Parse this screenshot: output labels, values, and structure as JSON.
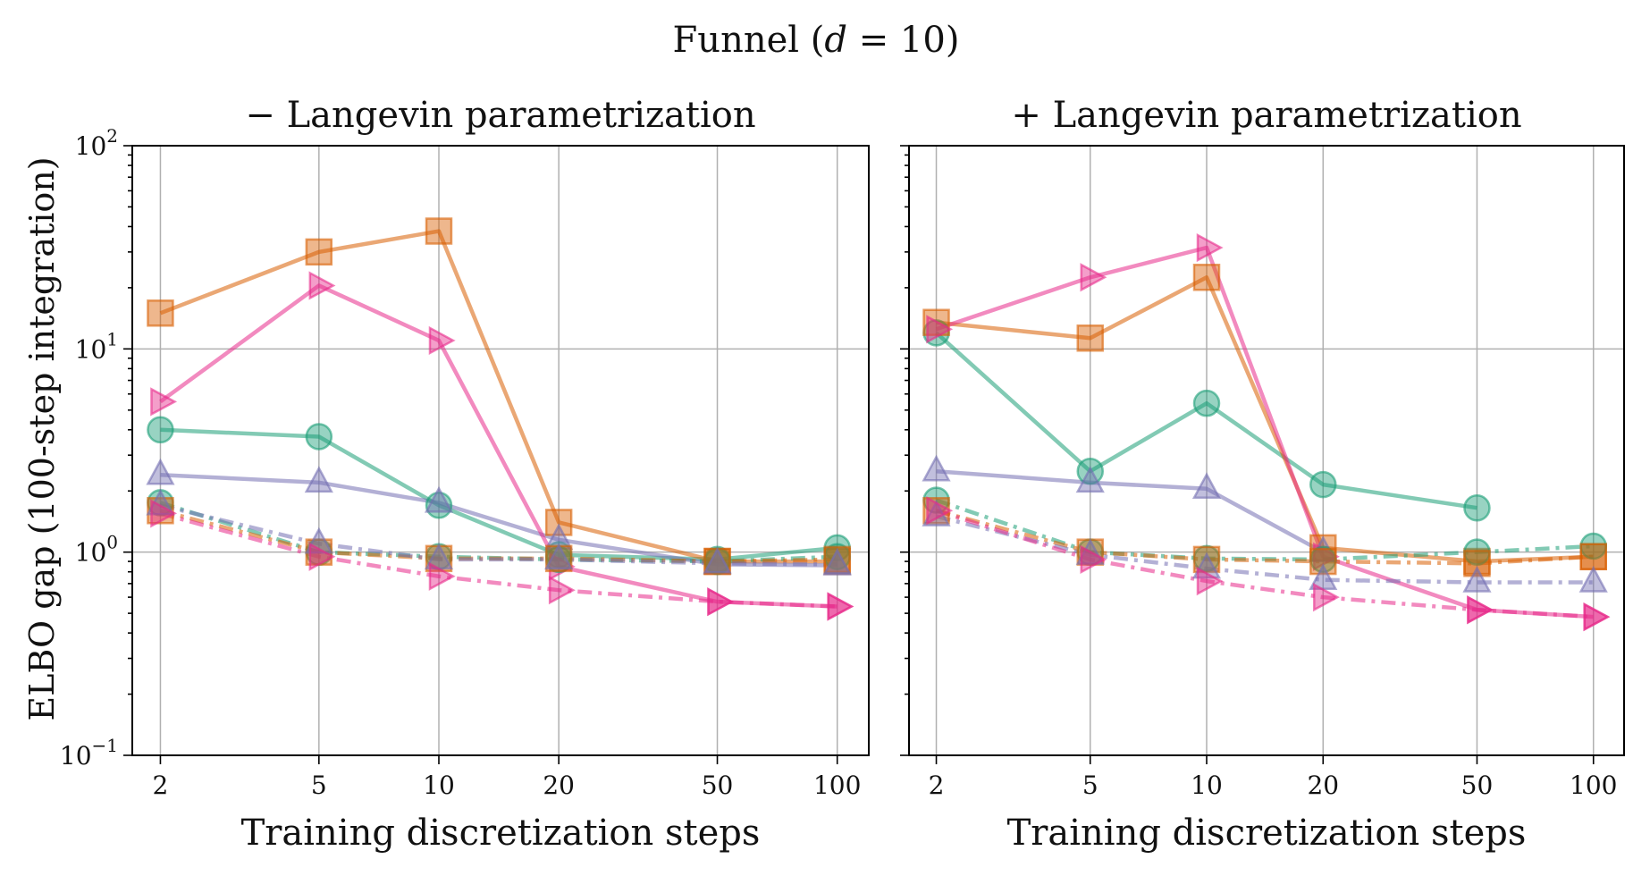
{
  "suptitle": "Funnel (d = 10)",
  "ylabel": "ELBO gap (100-step integration)",
  "colors": {
    "green": "#1b9e77",
    "orange": "#d95f02",
    "purple": "#7570b3",
    "pink": "#e7298a"
  },
  "chart_data": [
    {
      "type": "line",
      "title": "− Langevin parametrization",
      "xlabel": "Training discretization steps",
      "xscale": "log",
      "yscale": "log",
      "xlim": [
        1.7,
        120
      ],
      "ylim": [
        0.1,
        100
      ],
      "xticks": [
        2,
        5,
        10,
        20,
        50,
        100
      ],
      "xtick_labels": [
        "2",
        "5",
        "10",
        "20",
        "50",
        "100"
      ],
      "yticks": [
        0.1,
        1,
        10,
        100
      ],
      "ytick_labels": [
        {
          "base": "10",
          "exp": "−1"
        },
        {
          "base": "10",
          "exp": "0"
        },
        {
          "base": "10",
          "exp": "1"
        },
        {
          "base": "10",
          "exp": "2"
        }
      ],
      "grid": true,
      "series": [
        {
          "name": "green-solid",
          "color": "#1b9e77",
          "marker": "circle",
          "style": "solid",
          "x": [
            2,
            5,
            10,
            20,
            50,
            100
          ],
          "y": [
            4.0,
            3.7,
            1.7,
            0.97,
            0.92,
            1.05
          ]
        },
        {
          "name": "orange-solid",
          "color": "#d95f02",
          "marker": "square",
          "style": "solid",
          "x": [
            2,
            5,
            10,
            20,
            50,
            100
          ],
          "y": [
            15,
            30,
            38,
            1.4,
            0.9,
            0.9
          ]
        },
        {
          "name": "purple-solid",
          "color": "#7570b3",
          "marker": "triangle-up",
          "style": "solid",
          "x": [
            2,
            5,
            10,
            20,
            50,
            100
          ],
          "y": [
            2.4,
            2.2,
            1.75,
            1.15,
            0.87,
            0.86
          ]
        },
        {
          "name": "pink-solid",
          "color": "#e7298a",
          "marker": "triangle-right",
          "style": "solid",
          "x": [
            2,
            5,
            10,
            20,
            50,
            100
          ],
          "y": [
            5.5,
            20.5,
            11,
            0.85,
            0.57,
            0.54
          ]
        },
        {
          "name": "green-dashdot",
          "color": "#1b9e77",
          "marker": "circle",
          "style": "dashdot",
          "x": [
            2,
            5,
            10,
            20,
            50,
            100
          ],
          "y": [
            1.75,
            1.0,
            0.95,
            0.92,
            0.9,
            0.95
          ]
        },
        {
          "name": "orange-dashdot",
          "color": "#d95f02",
          "marker": "square",
          "style": "dashdot",
          "x": [
            2,
            5,
            10,
            20,
            50,
            100
          ],
          "y": [
            1.6,
            1.0,
            0.93,
            0.93,
            0.9,
            0.92
          ]
        },
        {
          "name": "purple-dashdot",
          "color": "#7570b3",
          "marker": "triangle-up",
          "style": "dashdot",
          "x": [
            2,
            5,
            10,
            20,
            50,
            100
          ],
          "y": [
            1.7,
            1.1,
            0.92,
            0.92,
            0.88,
            0.87
          ]
        },
        {
          "name": "pink-dashdot",
          "color": "#e7298a",
          "marker": "triangle-right",
          "style": "dashdot",
          "x": [
            2,
            5,
            10,
            20,
            50,
            100
          ],
          "y": [
            1.55,
            0.95,
            0.76,
            0.65,
            0.57,
            0.54
          ]
        }
      ]
    },
    {
      "type": "line",
      "title": "+ Langevin parametrization",
      "xlabel": "Training discretization steps",
      "xscale": "log",
      "yscale": "log",
      "xlim": [
        1.7,
        120
      ],
      "ylim": [
        0.1,
        100
      ],
      "xticks": [
        2,
        5,
        10,
        20,
        50,
        100
      ],
      "xtick_labels": [
        "2",
        "5",
        "10",
        "20",
        "50",
        "100"
      ],
      "grid": true,
      "series": [
        {
          "name": "green-solid",
          "color": "#1b9e77",
          "marker": "circle",
          "style": "solid",
          "x": [
            2,
            5,
            10,
            20,
            50
          ],
          "y": [
            12,
            2.5,
            5.4,
            2.15,
            1.65
          ]
        },
        {
          "name": "orange-solid",
          "color": "#d95f02",
          "marker": "square",
          "style": "solid",
          "x": [
            2,
            5,
            10,
            20,
            50,
            100
          ],
          "y": [
            13.5,
            11.3,
            22.5,
            1.05,
            0.9,
            0.95
          ]
        },
        {
          "name": "purple-solid",
          "color": "#7570b3",
          "marker": "triangle-up",
          "style": "solid",
          "x": [
            2,
            5,
            10,
            20
          ],
          "y": [
            2.5,
            2.2,
            2.05,
            1.0
          ]
        },
        {
          "name": "pink-solid",
          "color": "#e7298a",
          "marker": "triangle-right",
          "style": "solid",
          "x": [
            2,
            5,
            10,
            20,
            50,
            100
          ],
          "y": [
            12.5,
            22.5,
            31.5,
            0.95,
            0.52,
            0.48
          ]
        },
        {
          "name": "green-dashdot",
          "color": "#1b9e77",
          "marker": "circle",
          "style": "dashdot",
          "x": [
            2,
            5,
            10,
            20,
            50,
            100
          ],
          "y": [
            1.8,
            1.0,
            0.93,
            0.92,
            1.0,
            1.07
          ]
        },
        {
          "name": "orange-dashdot",
          "color": "#d95f02",
          "marker": "square",
          "style": "dashdot",
          "x": [
            2,
            5,
            10,
            20,
            50,
            100
          ],
          "y": [
            1.6,
            1.0,
            0.92,
            0.9,
            0.88,
            0.95
          ]
        },
        {
          "name": "purple-dashdot",
          "color": "#7570b3",
          "marker": "triangle-up",
          "style": "dashdot",
          "x": [
            2,
            5,
            10,
            20,
            50,
            100
          ],
          "y": [
            1.5,
            0.97,
            0.83,
            0.73,
            0.71,
            0.71
          ]
        },
        {
          "name": "pink-dashdot",
          "color": "#e7298a",
          "marker": "triangle-right",
          "style": "dashdot",
          "x": [
            2,
            5,
            10,
            20,
            50,
            100
          ],
          "y": [
            1.6,
            0.92,
            0.72,
            0.6,
            0.52,
            0.48
          ]
        }
      ]
    }
  ]
}
